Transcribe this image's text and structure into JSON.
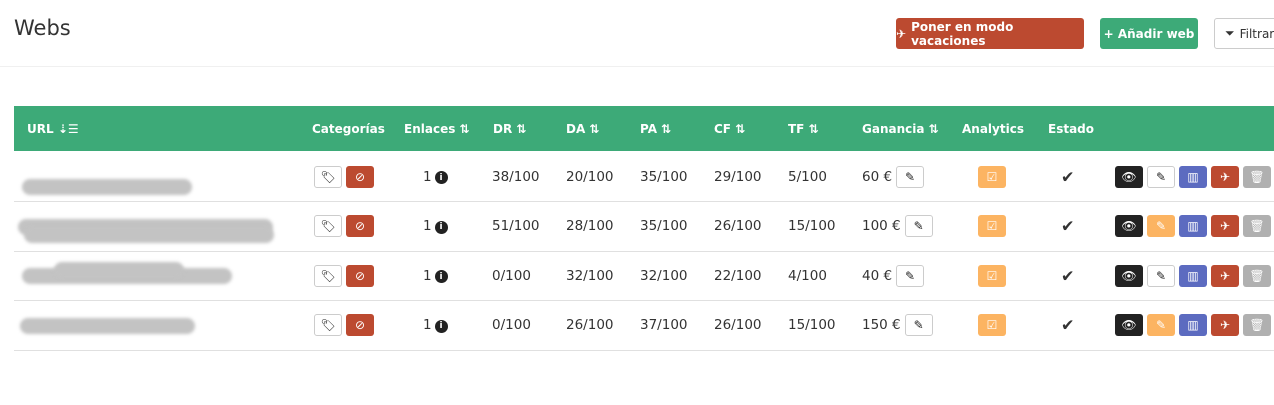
{
  "page": {
    "title": "Webs"
  },
  "toolbar": {
    "vacation_label": "Poner en modo vacaciones",
    "add_label": "+ Añadir web",
    "filter_label": "Filtrar"
  },
  "table": {
    "headers": {
      "url": "URL",
      "categorias": "Categorías",
      "enlaces": "Enlaces",
      "dr": "DR",
      "da": "DA",
      "pa": "PA",
      "cf": "CF",
      "tf": "TF",
      "ganancia": "Ganancia",
      "analytics": "Analytics",
      "estado": "Estado"
    },
    "rows": [
      {
        "enlaces": "1",
        "dr": "38/100",
        "da": "20/100",
        "pa": "35/100",
        "cf": "29/100",
        "tf": "5/100",
        "ganancia": "60 €",
        "edit_highlighted": false
      },
      {
        "enlaces": "1",
        "dr": "51/100",
        "da": "28/100",
        "pa": "35/100",
        "cf": "26/100",
        "tf": "15/100",
        "ganancia": "100 €",
        "edit_highlighted": true
      },
      {
        "enlaces": "1",
        "dr": "0/100",
        "da": "32/100",
        "pa": "32/100",
        "cf": "22/100",
        "tf": "4/100",
        "ganancia": "40 €",
        "edit_highlighted": false
      },
      {
        "enlaces": "1",
        "dr": "0/100",
        "da": "26/100",
        "pa": "37/100",
        "cf": "26/100",
        "tf": "15/100",
        "ganancia": "150 €",
        "edit_highlighted": true
      }
    ]
  },
  "colors": {
    "green": "#3daa78",
    "red": "#bc4a30",
    "orange": "#fcb462",
    "purple": "#5c6bc0",
    "grey": "#b0b0b0",
    "dark": "#222222"
  }
}
